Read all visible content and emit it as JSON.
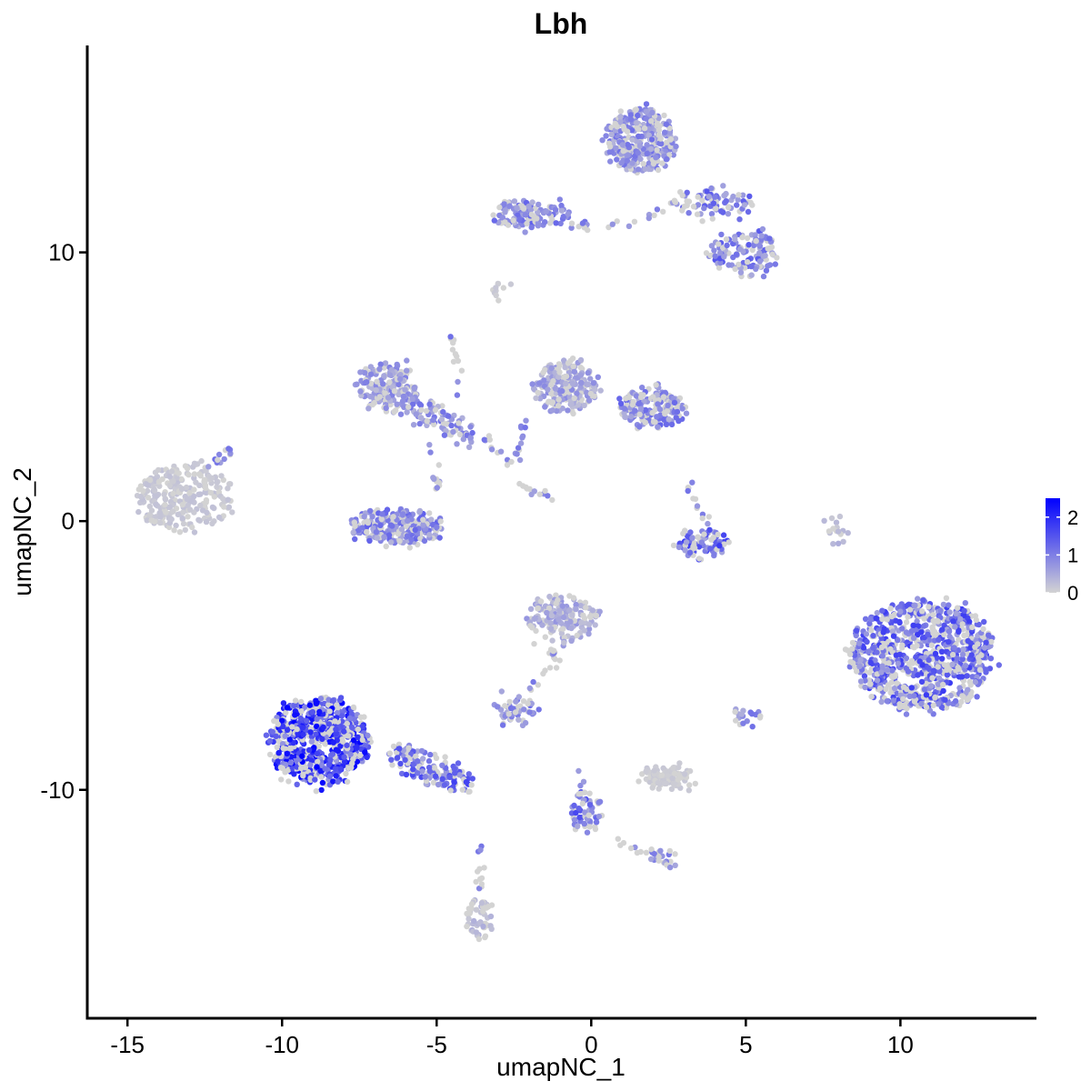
{
  "chart_data": {
    "type": "scatter",
    "title": "Lbh",
    "xlabel": "umapNC_1",
    "ylabel": "umapNC_2",
    "xlim": [
      -16.3,
      14.4
    ],
    "ylim": [
      -18.5,
      17.7
    ],
    "xticks": [
      -15,
      -10,
      -5,
      0,
      5,
      10
    ],
    "yticks": [
      -10,
      0,
      10
    ],
    "color_scale": {
      "low": "#d3d3d3",
      "high": "#0000ff",
      "min": 0,
      "max": 2.5,
      "ticks": [
        0,
        1,
        2
      ]
    },
    "grid": false,
    "legend": "right",
    "clusters": [
      {
        "cx": -13.2,
        "cy": 0.9,
        "rx": 1.5,
        "ry": 1.2,
        "n": 260,
        "expr": 0.15,
        "extra": "tail-ne"
      },
      {
        "cx": -8.8,
        "cy": -8.2,
        "rx": 1.6,
        "ry": 1.6,
        "n": 700,
        "expr": 1.7
      },
      {
        "cx": -5.2,
        "cy": -9.2,
        "rx": 1.6,
        "ry": 0.5,
        "n": 140,
        "expr": 1.2,
        "angle": -25
      },
      {
        "cx": -6.3,
        "cy": -0.2,
        "rx": 1.5,
        "ry": 0.6,
        "n": 260,
        "expr": 0.9
      },
      {
        "cx": -6.6,
        "cy": 5.0,
        "rx": 1.0,
        "ry": 0.8,
        "n": 200,
        "expr": 0.7
      },
      {
        "cx": -5.0,
        "cy": 3.8,
        "rx": 1.6,
        "ry": 0.4,
        "n": 90,
        "expr": 0.8,
        "angle": -30
      },
      {
        "cx": -0.8,
        "cy": 5.0,
        "rx": 1.0,
        "ry": 1.0,
        "n": 220,
        "expr": 0.6
      },
      {
        "cx": 2.0,
        "cy": 4.2,
        "rx": 1.1,
        "ry": 0.7,
        "n": 180,
        "expr": 0.9
      },
      {
        "cx": 1.6,
        "cy": 14.2,
        "rx": 1.1,
        "ry": 1.2,
        "n": 320,
        "expr": 0.8
      },
      {
        "cx": -2.0,
        "cy": 11.4,
        "rx": 1.3,
        "ry": 0.5,
        "n": 120,
        "expr": 0.9
      },
      {
        "cx": 5.0,
        "cy": 10.0,
        "rx": 1.2,
        "ry": 0.8,
        "n": 130,
        "expr": 1.0
      },
      {
        "cx": 4.0,
        "cy": 11.8,
        "rx": 1.3,
        "ry": 0.5,
        "n": 80,
        "expr": 1.0
      },
      {
        "cx": -0.9,
        "cy": -3.6,
        "rx": 1.1,
        "ry": 0.9,
        "n": 160,
        "expr": 0.5
      },
      {
        "cx": -2.5,
        "cy": -7.0,
        "rx": 0.6,
        "ry": 0.4,
        "n": 50,
        "expr": 0.8
      },
      {
        "cx": 3.6,
        "cy": -0.8,
        "rx": 0.8,
        "ry": 0.5,
        "n": 80,
        "expr": 1.2
      },
      {
        "cx": 2.4,
        "cy": -9.5,
        "rx": 0.8,
        "ry": 0.35,
        "n": 110,
        "expr": 0.1
      },
      {
        "cx": 10.7,
        "cy": -5.0,
        "rx": 2.3,
        "ry": 2.1,
        "n": 900,
        "expr": 1.2
      },
      {
        "cx": -3.6,
        "cy": -14.8,
        "rx": 0.35,
        "ry": 0.7,
        "n": 50,
        "expr": 0.3
      },
      {
        "cx": -0.2,
        "cy": -10.8,
        "rx": 0.45,
        "ry": 0.8,
        "n": 50,
        "expr": 1.1
      },
      {
        "cx": 5.0,
        "cy": -7.3,
        "rx": 0.3,
        "ry": 0.3,
        "n": 18,
        "expr": 0.8
      },
      {
        "cx": 7.9,
        "cy": -0.3,
        "rx": 0.25,
        "ry": 0.6,
        "n": 16,
        "expr": 0.3
      },
      {
        "cx": -3.0,
        "cy": 8.6,
        "rx": 0.3,
        "ry": 0.2,
        "n": 10,
        "expr": 0.1
      },
      {
        "cx": 2.3,
        "cy": -12.6,
        "rx": 0.35,
        "ry": 0.3,
        "n": 18,
        "expr": 0.8
      }
    ]
  }
}
